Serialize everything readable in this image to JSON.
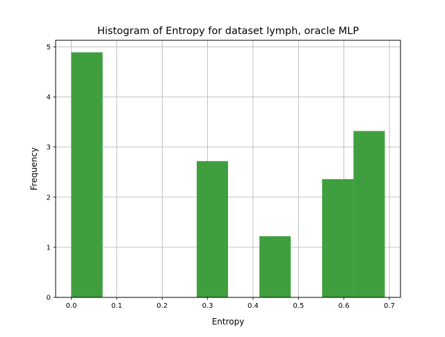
{
  "chart_data": {
    "type": "bar",
    "title": "Histogram of Entropy for dataset lymph, oracle MLP",
    "xlabel": "Entropy",
    "ylabel": "Frequency",
    "xlim": [
      -0.0345,
      0.7245
    ],
    "ylim": [
      0,
      5.13
    ],
    "xticks": [
      0.0,
      0.1,
      0.2,
      0.3,
      0.4,
      0.5,
      0.6,
      0.7
    ],
    "xtick_labels": [
      "0.0",
      "0.1",
      "0.2",
      "0.3",
      "0.4",
      "0.5",
      "0.6",
      "0.7"
    ],
    "yticks": [
      0,
      1,
      2,
      3,
      4,
      5
    ],
    "ytick_labels": [
      "0",
      "1",
      "2",
      "3",
      "4",
      "5"
    ],
    "grid": true,
    "bar_color": "#3f9f3f",
    "bins": [
      {
        "x0": 0.0,
        "x1": 0.069,
        "value": 4.89
      },
      {
        "x0": 0.069,
        "x1": 0.138,
        "value": 0
      },
      {
        "x0": 0.138,
        "x1": 0.207,
        "value": 0
      },
      {
        "x0": 0.207,
        "x1": 0.276,
        "value": 0
      },
      {
        "x0": 0.276,
        "x1": 0.345,
        "value": 2.72
      },
      {
        "x0": 0.345,
        "x1": 0.414,
        "value": 0
      },
      {
        "x0": 0.414,
        "x1": 0.483,
        "value": 1.22
      },
      {
        "x0": 0.483,
        "x1": 0.552,
        "value": 0
      },
      {
        "x0": 0.552,
        "x1": 0.621,
        "value": 2.36
      },
      {
        "x0": 0.621,
        "x1": 0.69,
        "value": 3.32
      }
    ]
  }
}
